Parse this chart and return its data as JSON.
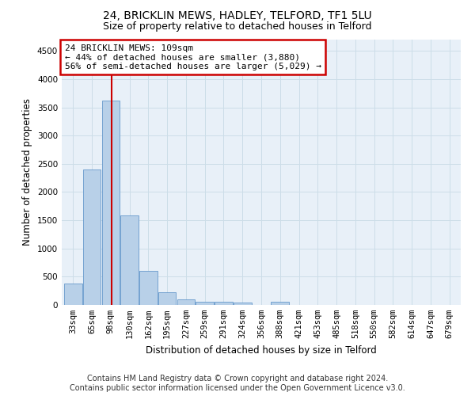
{
  "title": "24, BRICKLIN MEWS, HADLEY, TELFORD, TF1 5LU",
  "subtitle": "Size of property relative to detached houses in Telford",
  "xlabel": "Distribution of detached houses by size in Telford",
  "ylabel": "Number of detached properties",
  "footer_line1": "Contains HM Land Registry data © Crown copyright and database right 2024.",
  "footer_line2": "Contains public sector information licensed under the Open Government Licence v3.0.",
  "categories": [
    "33sqm",
    "65sqm",
    "98sqm",
    "130sqm",
    "162sqm",
    "195sqm",
    "227sqm",
    "259sqm",
    "291sqm",
    "324sqm",
    "356sqm",
    "388sqm",
    "421sqm",
    "453sqm",
    "485sqm",
    "518sqm",
    "550sqm",
    "582sqm",
    "614sqm",
    "647sqm",
    "679sqm"
  ],
  "values": [
    380,
    2400,
    3620,
    1590,
    600,
    225,
    105,
    60,
    55,
    40,
    0,
    55,
    0,
    0,
    0,
    0,
    0,
    0,
    0,
    0,
    0
  ],
  "bar_color": "#b8d0e8",
  "bar_edge_color": "#6699cc",
  "vline_x_index": 2,
  "vline_x_offset": 0.05,
  "vline_color": "#cc0000",
  "annotation_text": "24 BRICKLIN MEWS: 109sqm\n← 44% of detached houses are smaller (3,880)\n56% of semi-detached houses are larger (5,029) →",
  "annotation_box_color": "white",
  "annotation_box_edgecolor": "#cc0000",
  "ylim": [
    0,
    4700
  ],
  "yticks": [
    0,
    500,
    1000,
    1500,
    2000,
    2500,
    3000,
    3500,
    4000,
    4500
  ],
  "grid_color": "#ccdde8",
  "bg_color": "#e8f0f8",
  "title_fontsize": 10,
  "subtitle_fontsize": 9,
  "axis_label_fontsize": 8.5,
  "tick_fontsize": 7.5,
  "footer_fontsize": 7
}
